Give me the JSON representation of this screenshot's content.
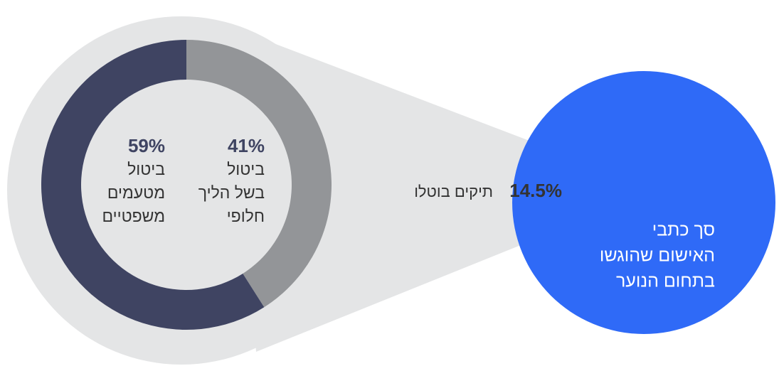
{
  "chart_data": {
    "type": "donut",
    "categories": [
      [
        "ביטול",
        "בשל הליך",
        "חלופי"
      ],
      [
        "ביטול",
        "מטעמים",
        "משפטיים"
      ]
    ],
    "values": [
      41,
      59
    ],
    "value_labels": [
      "41%",
      "59%"
    ],
    "colors": [
      "#939598",
      "#3f4462"
    ],
    "callout": {
      "value": 14.5,
      "value_label": "14.5%",
      "label": "תיקים בוטלו"
    },
    "total_label": [
      "סך כתבי",
      "האישום שהוגשו",
      "בתחום הנוער"
    ]
  }
}
